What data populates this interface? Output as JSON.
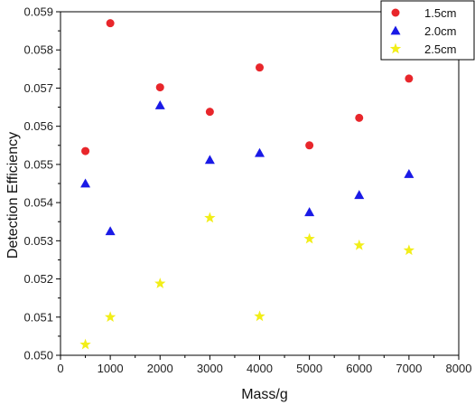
{
  "chart_data": {
    "type": "scatter",
    "xlabel": "Mass/g",
    "ylabel": "Detection Efficiency",
    "xlim": [
      0,
      8000
    ],
    "ylim": [
      0.05,
      0.059
    ],
    "xticks": [
      "0",
      "1000",
      "2000",
      "3000",
      "4000",
      "5000",
      "6000",
      "7000",
      "8000"
    ],
    "yticks": [
      "0.050",
      "0.051",
      "0.052",
      "0.053",
      "0.054",
      "0.055",
      "0.056",
      "0.057",
      "0.058",
      "0.059"
    ],
    "grid": false,
    "legend_position": "top-right",
    "series": [
      {
        "name": "1.5cm",
        "marker": "circle",
        "color": "#e8262b",
        "x": [
          500,
          1000,
          2000,
          3000,
          4000,
          5000,
          6000,
          7000
        ],
        "y": [
          0.05535,
          0.0587,
          0.05702,
          0.05638,
          0.05754,
          0.0555,
          0.05622,
          0.05725
        ]
      },
      {
        "name": "2.0cm",
        "marker": "triangle",
        "color": "#1a1ae6",
        "x": [
          500,
          1000,
          2000,
          3000,
          4000,
          5000,
          6000,
          7000
        ],
        "y": [
          0.0545,
          0.05325,
          0.05655,
          0.05512,
          0.0553,
          0.05375,
          0.0542,
          0.05475
        ]
      },
      {
        "name": "2.5cm",
        "marker": "star",
        "color": "#f2ee18",
        "x": [
          500,
          1000,
          2000,
          3000,
          4000,
          5000,
          6000,
          7000
        ],
        "y": [
          0.05028,
          0.051,
          0.05188,
          0.0536,
          0.05102,
          0.05305,
          0.05288,
          0.05275
        ]
      }
    ]
  }
}
